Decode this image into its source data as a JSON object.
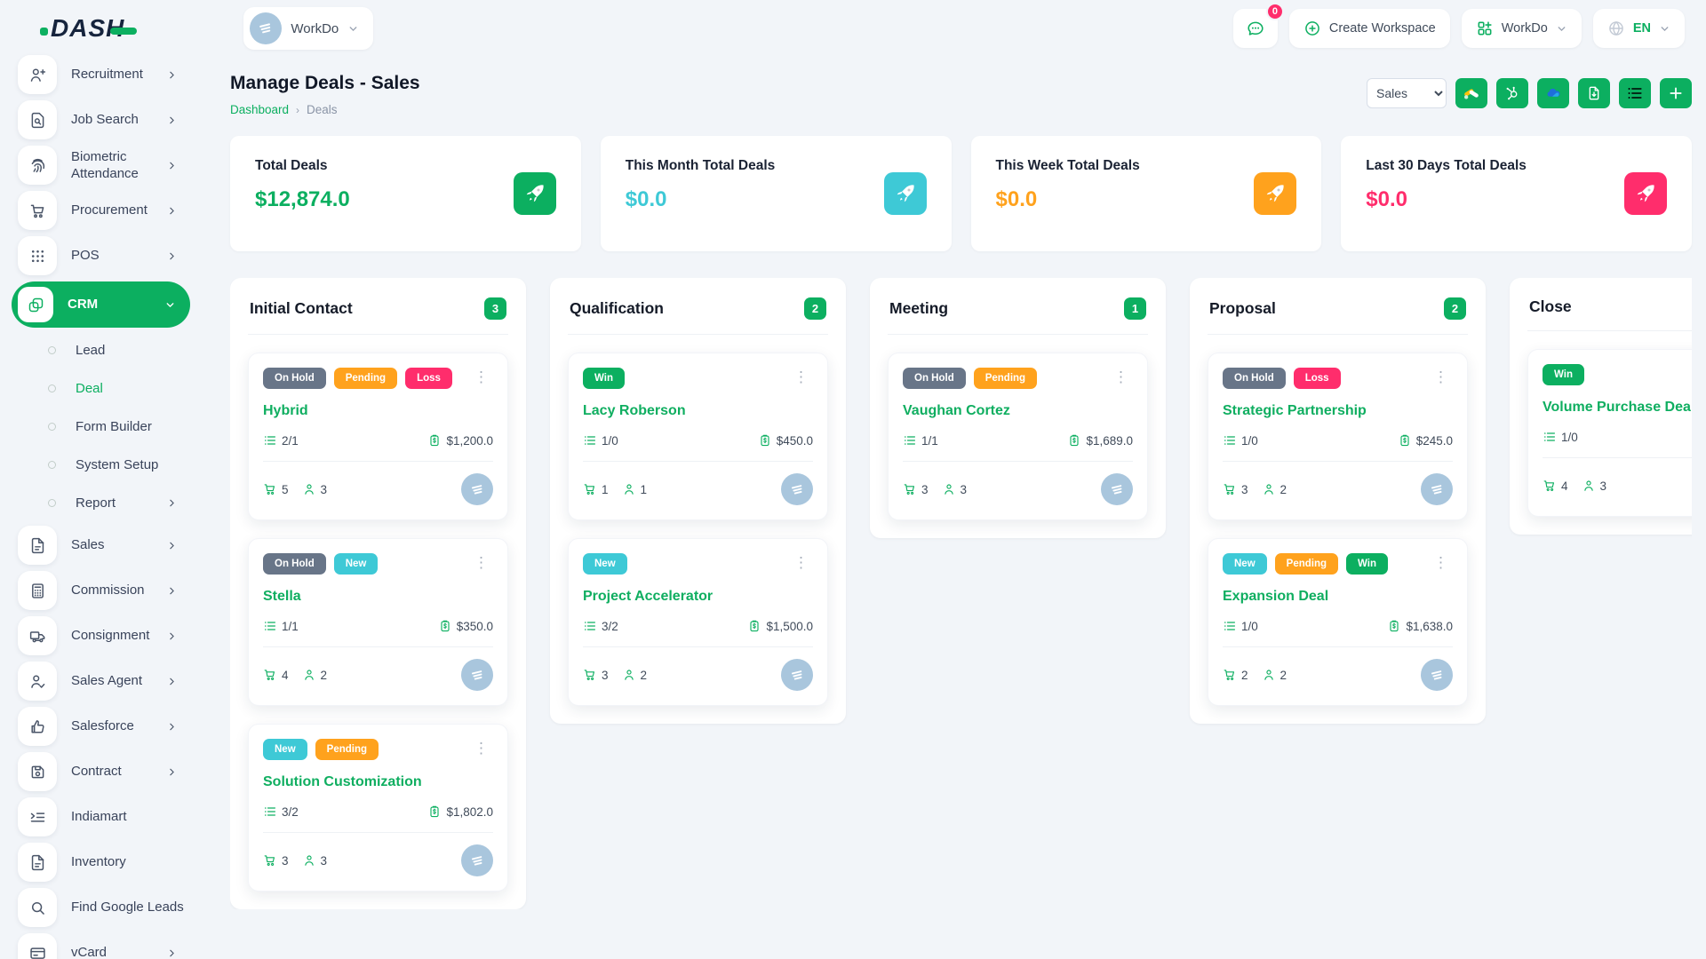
{
  "colors": {
    "brand_green": "#0CAF60",
    "teal": "#3EC9D6",
    "orange": "#FFA21D",
    "pink": "#FF2D6C",
    "gray_badge": "#687588",
    "avatar_blue": "#a9c6dd"
  },
  "header": {
    "logo_text": "DASH",
    "workspace_switcher": {
      "label": "WorkDo",
      "icon": "building-icon",
      "chevron": "chevron-down-icon"
    },
    "notification": {
      "icon": "chat-bubble-icon",
      "badge": "0"
    },
    "create_workspace": {
      "label": "Create Workspace",
      "icon": "plus-circle-icon"
    },
    "workdo_menu": {
      "label": "WorkDo",
      "icon": "grid-plus-icon",
      "chevron": "chevron-down-icon"
    },
    "language": {
      "code": "EN",
      "icon": "globe-icon",
      "chevron": "chevron-down-icon"
    }
  },
  "sidebar": {
    "items": [
      {
        "label": "Recruitment",
        "icon": "person-plus",
        "chevron": true
      },
      {
        "label": "Job Search",
        "icon": "doc-search",
        "chevron": true
      },
      {
        "label": "Biometric Attendance",
        "icon": "fingerprint",
        "chevron": true
      },
      {
        "label": "Procurement",
        "icon": "cart",
        "chevron": true
      },
      {
        "label": "POS",
        "icon": "grid-dots",
        "chevron": true
      },
      {
        "label": "CRM",
        "icon": "squares",
        "active": true,
        "expanded": true,
        "children": [
          {
            "label": "Lead"
          },
          {
            "label": "Deal",
            "active": true
          },
          {
            "label": "Form Builder"
          },
          {
            "label": "System Setup"
          },
          {
            "label": "Report",
            "chevron": true
          }
        ]
      },
      {
        "label": "Sales",
        "icon": "file",
        "chevron": true
      },
      {
        "label": "Commission",
        "icon": "calculator",
        "chevron": true
      },
      {
        "label": "Consignment",
        "icon": "truck",
        "chevron": true
      },
      {
        "label": "Sales Agent",
        "icon": "person-check",
        "chevron": true
      },
      {
        "label": "Salesforce",
        "icon": "thumbs-up",
        "chevron": true
      },
      {
        "label": "Contract",
        "icon": "floppy",
        "chevron": true
      },
      {
        "label": "Indiamart",
        "icon": "indent-list"
      },
      {
        "label": "Inventory",
        "icon": "file"
      },
      {
        "label": "Find Google Leads",
        "icon": "search"
      },
      {
        "label": "vCard",
        "icon": "id-card",
        "chevron": true
      }
    ]
  },
  "page": {
    "title": "Manage Deals - Sales",
    "breadcrumb": {
      "home": "Dashboard",
      "separator": "›",
      "current": "Deals"
    }
  },
  "toolbar": {
    "pipeline_select": {
      "value": "Sales"
    },
    "buttons": [
      {
        "name": "google-ads-button",
        "icon": "google-ads-icon"
      },
      {
        "name": "hubspot-button",
        "icon": "hubspot-icon"
      },
      {
        "name": "onedrive-button",
        "icon": "onedrive-icon"
      },
      {
        "name": "export-button",
        "icon": "export-doc-icon"
      },
      {
        "name": "list-view-button",
        "icon": "list-icon"
      },
      {
        "name": "add-deal-button",
        "icon": "plus-icon"
      }
    ]
  },
  "stats": [
    {
      "label": "Total Deals",
      "value": "$12,874.0",
      "color": "#0CAF60",
      "icon": "rocket-icon"
    },
    {
      "label": "This Month Total Deals",
      "value": "$0.0",
      "color": "#3EC9D6",
      "icon": "rocket-icon"
    },
    {
      "label": "This Week Total Deals",
      "value": "$0.0",
      "color": "#FFA21D",
      "icon": "rocket-icon"
    },
    {
      "label": "Last 30 Days Total Deals",
      "value": "$0.0",
      "color": "#FF2D6C",
      "icon": "rocket-icon"
    }
  ],
  "board": {
    "status_colors": {
      "On Hold": "#687588",
      "Pending": "#FFA21D",
      "New": "#3EC9D6",
      "Win": "#0CAF60",
      "Loss": "#FF2D6C"
    },
    "card_icons": {
      "tasks": "list-icon",
      "amount": "money-clipboard-icon",
      "products": "cart-icon",
      "users": "user-icon",
      "avatar": "building-icon",
      "menu": "kebab-icon"
    },
    "columns": [
      {
        "title": "Initial Contact",
        "count": "3",
        "cards": [
          {
            "name": "Hybrid",
            "statuses": [
              "On Hold",
              "Pending",
              "Loss"
            ],
            "tasks": "2/1",
            "amount": "$1,200.0",
            "products": "5",
            "users": "3"
          },
          {
            "name": "Stella",
            "statuses": [
              "On Hold",
              "New"
            ],
            "tasks": "1/1",
            "amount": "$350.0",
            "products": "4",
            "users": "2"
          },
          {
            "name": "Solution Customization",
            "statuses": [
              "New",
              "Pending"
            ],
            "tasks": "3/2",
            "amount": "$1,802.0",
            "products": "3",
            "users": "3"
          }
        ]
      },
      {
        "title": "Qualification",
        "count": "2",
        "cards": [
          {
            "name": "Lacy Roberson",
            "statuses": [
              "Win"
            ],
            "tasks": "1/0",
            "amount": "$450.0",
            "products": "1",
            "users": "1"
          },
          {
            "name": "Project Accelerator",
            "statuses": [
              "New"
            ],
            "tasks": "3/2",
            "amount": "$1,500.0",
            "products": "3",
            "users": "2"
          }
        ]
      },
      {
        "title": "Meeting",
        "count": "1",
        "cards": [
          {
            "name": "Vaughan Cortez",
            "statuses": [
              "On Hold",
              "Pending"
            ],
            "tasks": "1/1",
            "amount": "$1,689.0",
            "products": "3",
            "users": "3"
          }
        ]
      },
      {
        "title": "Proposal",
        "count": "2",
        "cards": [
          {
            "name": "Strategic Partnership",
            "statuses": [
              "On Hold",
              "Loss"
            ],
            "tasks": "1/0",
            "amount": "$245.0",
            "products": "3",
            "users": "2"
          },
          {
            "name": "Expansion Deal",
            "statuses": [
              "New",
              "Pending",
              "Win"
            ],
            "tasks": "1/0",
            "amount": "$1,638.0",
            "products": "2",
            "users": "2"
          }
        ]
      },
      {
        "title": "Close",
        "count": null,
        "cards": [
          {
            "name": "Volume Purchase Deal",
            "statuses": [
              "Win"
            ],
            "tasks": "1/0",
            "amount": "",
            "products": "4",
            "users": "3"
          }
        ]
      }
    ]
  }
}
